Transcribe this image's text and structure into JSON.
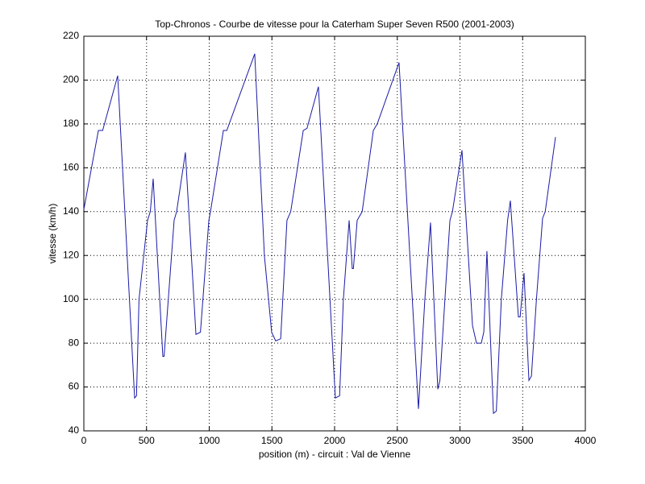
{
  "chart_data": {
    "type": "line",
    "title": "Top-Chronos - Courbe de vitesse pour la Caterham Super Seven R500 (2001-2003)",
    "xlabel": "position (m) - circuit : Val de Vienne",
    "ylabel": "vitesse (km/h)",
    "x": [
      0,
      116,
      150,
      270,
      405,
      420,
      440,
      508,
      530,
      553,
      630,
      640,
      720,
      740,
      810,
      894,
      930,
      997,
      1010,
      1113,
      1140,
      1363,
      1440,
      1498,
      1530,
      1570,
      1620,
      1650,
      1750,
      1780,
      1871,
      2006,
      2040,
      2070,
      2116,
      2141,
      2150,
      2180,
      2220,
      2309,
      2340,
      2514,
      2669,
      2720,
      2765,
      2823,
      2840,
      2880,
      2920,
      2940,
      3016,
      3100,
      3132,
      3170,
      3190,
      3215,
      3267,
      3290,
      3330,
      3380,
      3402,
      3466,
      3480,
      3511,
      3550,
      3570,
      3610,
      3659,
      3680,
      3762
    ],
    "series": [
      {
        "name": "vitesse",
        "color": "#1a1aa6",
        "values": [
          141,
          177,
          177,
          202,
          55,
          56,
          100,
          136,
          140,
          155,
          74,
          74,
          136,
          140,
          167,
          84,
          85,
          136,
          140,
          177,
          177,
          212,
          120,
          85,
          81,
          82,
          136,
          140,
          177,
          178,
          197,
          55,
          56,
          100,
          136,
          114,
          114,
          136,
          140,
          177,
          180,
          208,
          50,
          100,
          135,
          59,
          63,
          100,
          136,
          140,
          168,
          88,
          80,
          80,
          85,
          122,
          48,
          49,
          100,
          136,
          145,
          92,
          92,
          112,
          63,
          65,
          100,
          137,
          140,
          174
        ]
      }
    ],
    "xlim": [
      0,
      4000
    ],
    "xticks": [
      0,
      500,
      1000,
      1500,
      2000,
      2500,
      3000,
      3500,
      4000
    ],
    "ylim": [
      40,
      220
    ],
    "yticks": [
      40,
      60,
      80,
      100,
      120,
      140,
      160,
      180,
      200,
      220
    ],
    "grid": true
  }
}
